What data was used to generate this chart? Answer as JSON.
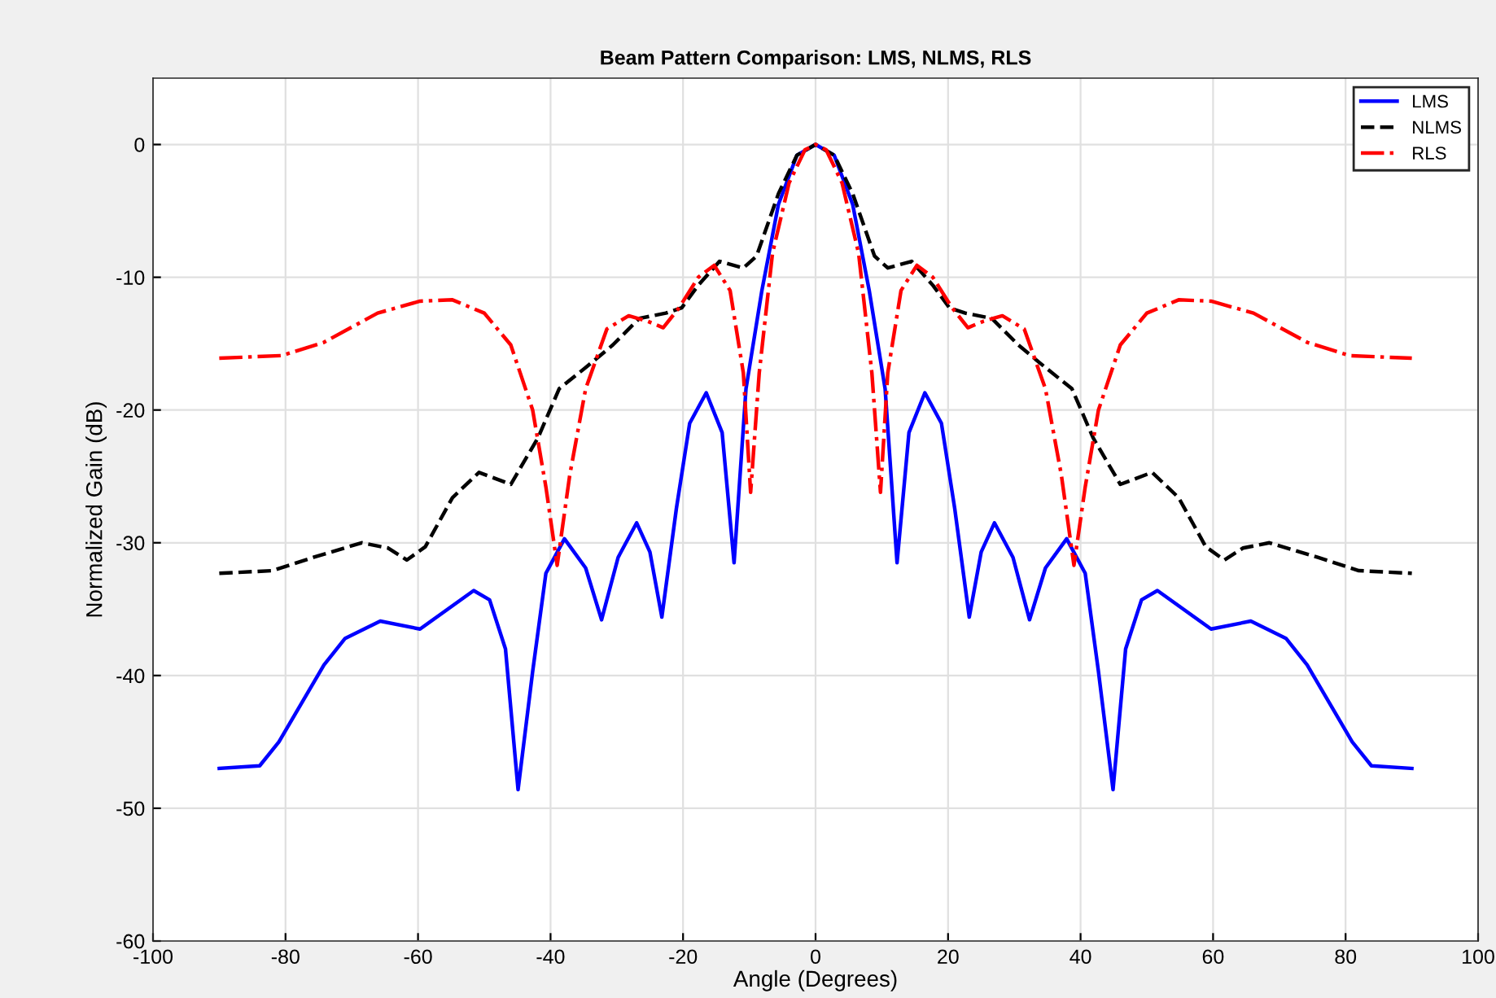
{
  "chart_data": {
    "type": "line",
    "title": "Beam Pattern Comparison: LMS, NLMS, RLS",
    "xlabel": "Angle (Degrees)",
    "ylabel": "Normalized Gain (dB)",
    "xlim": [
      -100,
      100
    ],
    "ylim": [
      -60,
      5
    ],
    "xticks": [
      -100,
      -80,
      -60,
      -40,
      -20,
      0,
      20,
      40,
      60,
      80,
      100
    ],
    "yticks": [
      -60,
      -50,
      -40,
      -30,
      -20,
      -10,
      0
    ],
    "grid": true,
    "legend": "top right",
    "series": [
      {
        "name": "LMS",
        "color": "#0000ff",
        "line_style": "solid",
        "x": [
          -90,
          -83.9,
          -81,
          -74.2,
          -71,
          -65.7,
          -59.7,
          -51.6,
          -49.2,
          -46.8,
          -44.9,
          -42.7,
          -40.7,
          -37.9,
          -34.7,
          -32.3,
          -29.8,
          -27,
          -25,
          -23.2,
          -21,
          -19,
          -16.5,
          -14.1,
          -12.3,
          -10.5,
          -8.1,
          -5.6,
          -2.8,
          0,
          2.8,
          5.6,
          8.1,
          10.5,
          12.3,
          14.1,
          16.5,
          19,
          21,
          23.2,
          25,
          27,
          29.8,
          32.3,
          34.7,
          37.9,
          40.7,
          42.7,
          44.9,
          46.8,
          49.2,
          51.6,
          59.7,
          65.7,
          71,
          74.2,
          81,
          83.9,
          90
        ],
        "values": [
          -47,
          -46.8,
          -45,
          -39.2,
          -37.2,
          -35.9,
          -36.5,
          -33.6,
          -34.3,
          -38,
          -48.6,
          -39.7,
          -32.3,
          -29.7,
          -31.9,
          -35.8,
          -31.1,
          -28.5,
          -30.7,
          -35.6,
          -27.4,
          -21,
          -18.7,
          -21.7,
          -31.5,
          -18.4,
          -11,
          -4.5,
          -0.8,
          0,
          -0.8,
          -4.5,
          -11,
          -18.4,
          -31.5,
          -21.7,
          -18.7,
          -21,
          -27.4,
          -35.6,
          -30.7,
          -28.5,
          -31.1,
          -35.8,
          -31.9,
          -29.7,
          -32.3,
          -39.7,
          -48.6,
          -38,
          -34.3,
          -33.6,
          -36.5,
          -35.9,
          -37.2,
          -39.2,
          -45,
          -46.8,
          -47
        ]
      },
      {
        "name": "NLMS",
        "color": "#000000",
        "line_style": "dashed",
        "x": [
          -90,
          -82,
          -75.8,
          -68.5,
          -64.5,
          -61.7,
          -58.9,
          -54.8,
          -50.8,
          -46,
          -41.9,
          -38.7,
          -34.7,
          -30.6,
          -26.6,
          -22.6,
          -20.2,
          -17.7,
          -14.5,
          -10.9,
          -8.9,
          -5.6,
          -2.8,
          0,
          2.8,
          5.6,
          8.9,
          10.9,
          14.5,
          17.7,
          20.2,
          22.6,
          26.6,
          30.6,
          34.7,
          38.7,
          41.9,
          46,
          50.8,
          54.8,
          58.9,
          61.7,
          64.5,
          68.5,
          75.8,
          82,
          90
        ],
        "values": [
          -32.3,
          -32.1,
          -31.1,
          -30,
          -30.4,
          -31.3,
          -30.3,
          -26.6,
          -24.7,
          -25.6,
          -22.1,
          -18.4,
          -16.8,
          -15.1,
          -13.1,
          -12.7,
          -12.3,
          -10.6,
          -8.8,
          -9.3,
          -8.4,
          -3.7,
          -0.8,
          0,
          -0.8,
          -3.7,
          -8.4,
          -9.3,
          -8.8,
          -10.6,
          -12.3,
          -12.7,
          -13.1,
          -15.1,
          -16.8,
          -18.4,
          -22.1,
          -25.6,
          -24.7,
          -26.6,
          -30.3,
          -31.3,
          -30.4,
          -30,
          -31.1,
          -32.1,
          -32.3
        ]
      },
      {
        "name": "RLS",
        "color": "#ff0000",
        "line_style": "dashdot",
        "x": [
          -90,
          -80.6,
          -74.2,
          -66.1,
          -59.7,
          -54.8,
          -50,
          -46,
          -42.7,
          -40.7,
          -39,
          -37.1,
          -34.7,
          -31.5,
          -28.2,
          -25.4,
          -23,
          -20.6,
          -17.7,
          -15.3,
          -12.9,
          -10.9,
          -9.8,
          -8.5,
          -6.5,
          -4,
          -1.6,
          0,
          1.6,
          4,
          6.5,
          8.5,
          9.8,
          10.9,
          12.9,
          15.3,
          17.7,
          20.6,
          23,
          25.4,
          28.2,
          31.5,
          34.7,
          37.1,
          39,
          40.7,
          42.7,
          46,
          50,
          54.8,
          59.7,
          66.1,
          74.2,
          80.6,
          90
        ],
        "values": [
          -16.1,
          -15.9,
          -14.9,
          -12.7,
          -11.8,
          -11.7,
          -12.7,
          -15.1,
          -20,
          -25.8,
          -31.7,
          -24.9,
          -18.4,
          -13.9,
          -12.9,
          -13.3,
          -13.8,
          -12.3,
          -10,
          -9.1,
          -11,
          -17.2,
          -26.2,
          -17.2,
          -8.2,
          -2.9,
          -0.4,
          0,
          -0.4,
          -2.9,
          -8.2,
          -17.2,
          -26.2,
          -17.2,
          -11,
          -9.1,
          -10,
          -12.3,
          -13.8,
          -13.3,
          -12.9,
          -13.9,
          -18.4,
          -24.9,
          -31.7,
          -25.8,
          -20,
          -15.1,
          -12.7,
          -11.7,
          -11.8,
          -12.7,
          -14.9,
          -15.9,
          -16.1
        ]
      }
    ]
  }
}
